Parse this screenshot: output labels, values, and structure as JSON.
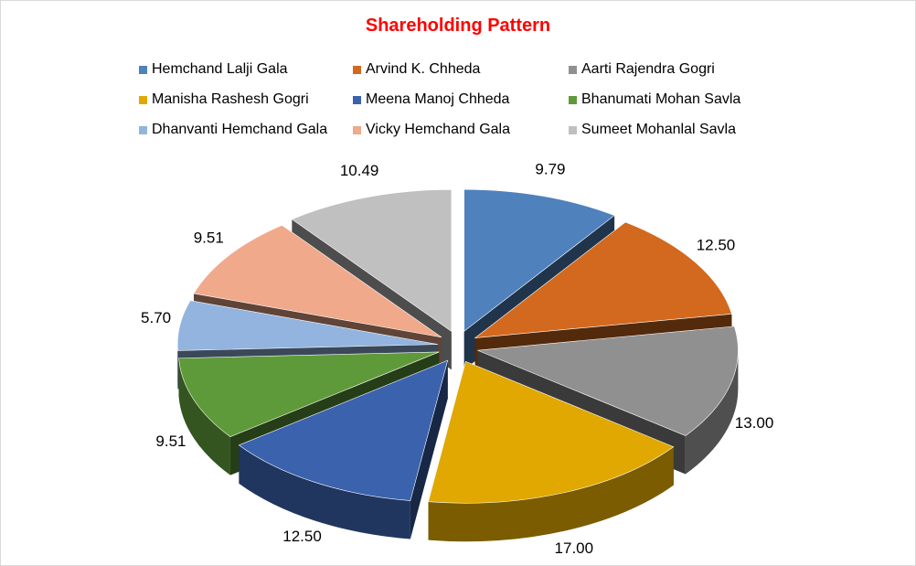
{
  "chart_data": {
    "type": "pie",
    "subtype": "exploded-3d",
    "title": "Shareholding Pattern",
    "legend_position": "top",
    "series": [
      {
        "name": "Hemchand Lalji Gala",
        "value": 9.79,
        "label": "9.79",
        "color": "#4f81bd"
      },
      {
        "name": "Arvind K. Chheda",
        "value": 12.5,
        "label": "12.50",
        "color": "#d2691e"
      },
      {
        "name": "Aarti Rajendra Gogri",
        "value": 13.0,
        "label": "13.00",
        "color": "#909090"
      },
      {
        "name": "Manisha Rashesh Gogri",
        "value": 17.0,
        "label": "17.00",
        "color": "#e0a800"
      },
      {
        "name": "Meena Manoj Chheda",
        "value": 12.5,
        "label": "12.50",
        "color": "#3a62ad"
      },
      {
        "name": "Bhanumati Mohan Savla",
        "value": 9.51,
        "label": "9.51",
        "color": "#5f9a3a"
      },
      {
        "name": "Dhanvanti Hemchand Gala",
        "value": 5.7,
        "label": "5.70",
        "color": "#92b4de"
      },
      {
        "name": "Vicky Hemchand Gala",
        "value": 9.51,
        "label": "9.51",
        "color": "#f0a98a"
      },
      {
        "name": "Sumeet Mohanlal Savla",
        "value": 10.49,
        "label": "10.49",
        "color": "#c0c0c0"
      }
    ]
  }
}
